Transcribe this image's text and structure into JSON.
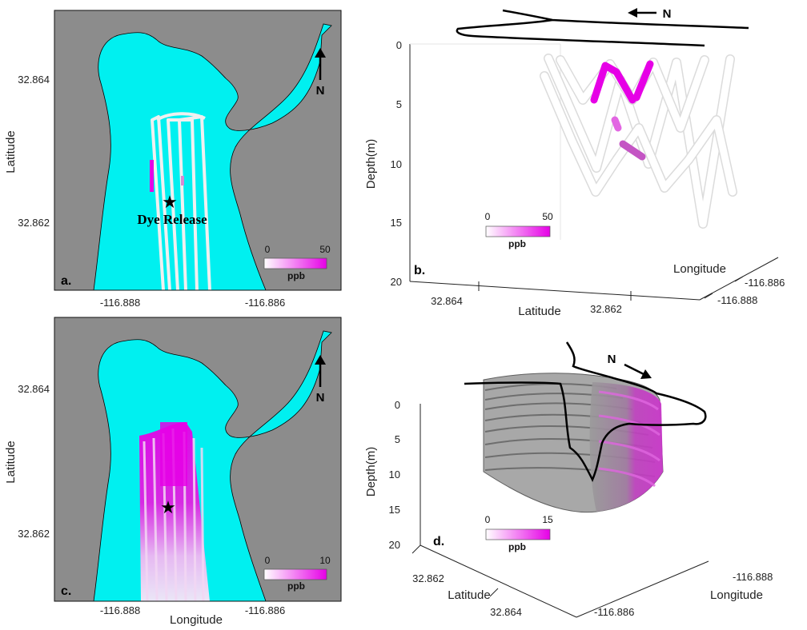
{
  "colors": {
    "water": "#00f0f0",
    "land": "#8c8c8c",
    "dye_low": "#fbe7fb",
    "dye_high": "#e600e6",
    "track_clean": "#f0f0f0",
    "coastline": "#000000"
  },
  "chart_data": [
    {
      "id": "a",
      "type": "heatmap",
      "panel_label": "a.",
      "xticks": [
        "-116.888",
        "-116.886"
      ],
      "yticks": [
        "32.864",
        "32.862"
      ],
      "ylabel": "Latitude",
      "xlabel": "",
      "north_label": "N",
      "annotation": "Dye Release",
      "colorbar": {
        "min": "0",
        "max": "50",
        "unit": "ppb"
      }
    },
    {
      "id": "b",
      "type": "scatter",
      "panel_label": "b.",
      "yticks": [
        "0",
        "5",
        "10",
        "15",
        "20"
      ],
      "ylabel": "Depth(m)",
      "lat_ticks": [
        "32.864",
        "32.862"
      ],
      "lat_label": "Latitude",
      "lon_ticks": [
        "-116.886",
        "-116.888"
      ],
      "lon_label": "Longitude",
      "north_label": "N",
      "colorbar": {
        "min": "0",
        "max": "50",
        "unit": "ppb"
      }
    },
    {
      "id": "c",
      "type": "heatmap",
      "panel_label": "c.",
      "xticks": [
        "-116.888",
        "-116.886"
      ],
      "yticks": [
        "32.864",
        "32.862"
      ],
      "ylabel": "Latitude",
      "xlabel": "Longitude",
      "north_label": "N",
      "colorbar": {
        "min": "0",
        "max": "10",
        "unit": "ppb"
      }
    },
    {
      "id": "d",
      "type": "scatter",
      "panel_label": "d.",
      "yticks": [
        "0",
        "5",
        "10",
        "15",
        "20"
      ],
      "ylabel": "Depth(m)",
      "lat_ticks": [
        "32.862",
        "32.864"
      ],
      "lat_label": "Latitude",
      "lon_ticks": [
        "-116.888",
        "-116.886"
      ],
      "lon_label": "Longitude",
      "north_label": "N",
      "colorbar": {
        "min": "0",
        "max": "15",
        "unit": "ppb"
      }
    }
  ]
}
